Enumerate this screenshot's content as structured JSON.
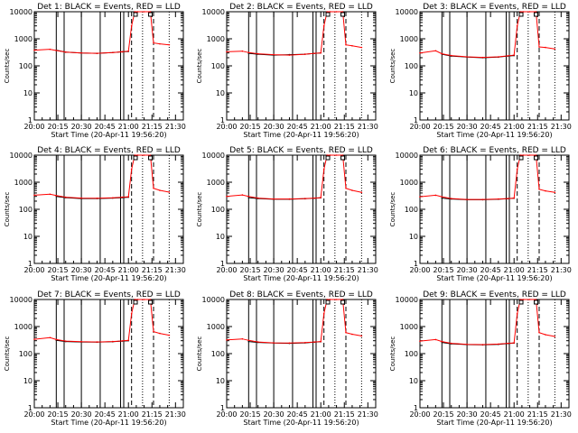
{
  "start_time_label": "Start Time (20-Apr-11 19:56:20)",
  "ylabel": "Counts/sec",
  "x_tick_labels": [
    "20:00",
    "20:15",
    "20:30",
    "20:45",
    "21:00",
    "21:15",
    "21:30"
  ],
  "y_tick_labels": [
    "1",
    "10",
    "100",
    "1000",
    "10000"
  ],
  "colors": {
    "events": "#000000",
    "lld": "#ff0000",
    "frame": "#000000"
  },
  "chart_data": [
    {
      "type": "line",
      "title": "Det 1: BLACK = Events, RED = LLD",
      "xlabel": "Start Time (20-Apr-11 19:56:20)",
      "ylabel": "Counts/sec",
      "ylim": [
        1,
        10000
      ],
      "y_scale": "log",
      "x_ticks_minutes": [
        0,
        15,
        30,
        45,
        60,
        75,
        90
      ],
      "vlines_solid": [
        14,
        19,
        30,
        42,
        55,
        57
      ],
      "vlines_dashed": [
        62,
        76
      ],
      "vlines_dotted": [
        69,
        86
      ],
      "series": [
        {
          "name": "Events",
          "color": "#000000",
          "x": [
            14,
            20,
            30,
            40,
            50,
            56,
            60
          ],
          "y": [
            380,
            320,
            300,
            290,
            310,
            330,
            340
          ]
        },
        {
          "name": "LLD",
          "color": "#ff0000",
          "x": [
            0,
            10,
            14,
            20,
            30,
            40,
            50,
            56,
            60,
            62,
            64,
            66,
            70,
            74,
            76,
            80,
            86
          ],
          "y": [
            380,
            410,
            370,
            320,
            300,
            290,
            310,
            330,
            350,
            3000,
            10000,
            10000,
            10000,
            10000,
            700,
            650,
            600
          ]
        }
      ]
    },
    {
      "type": "line",
      "title": "Det 2: BLACK = Events, RED = LLD",
      "xlabel": "Start Time (20-Apr-11 19:56:20)",
      "ylabel": "Counts/sec",
      "ylim": [
        1,
        10000
      ],
      "y_scale": "log",
      "x_ticks_minutes": [
        0,
        15,
        30,
        45,
        60,
        75,
        90
      ],
      "vlines_solid": [
        14,
        19,
        30,
        42,
        55,
        57
      ],
      "vlines_dashed": [
        62,
        76
      ],
      "vlines_dotted": [
        69,
        86
      ],
      "series": [
        {
          "name": "Events",
          "color": "#000000",
          "x": [
            14,
            20,
            30,
            40,
            50,
            56,
            60
          ],
          "y": [
            290,
            270,
            250,
            260,
            270,
            290,
            300
          ]
        },
        {
          "name": "LLD",
          "color": "#ff0000",
          "x": [
            0,
            10,
            14,
            20,
            30,
            40,
            50,
            56,
            60,
            62,
            64,
            66,
            70,
            74,
            76,
            80,
            86
          ],
          "y": [
            330,
            350,
            310,
            280,
            260,
            250,
            270,
            290,
            300,
            3000,
            10000,
            10000,
            10000,
            10000,
            600,
            550,
            480
          ]
        }
      ]
    },
    {
      "type": "line",
      "title": "Det 3: BLACK = Events, RED = LLD",
      "xlabel": "Start Time (20-Apr-11 19:56:20)",
      "ylabel": "Counts/sec",
      "ylim": [
        1,
        10000
      ],
      "y_scale": "log",
      "x_ticks_minutes": [
        0,
        15,
        30,
        45,
        60,
        75,
        90
      ],
      "vlines_solid": [
        14,
        19,
        30,
        42,
        55,
        57
      ],
      "vlines_dashed": [
        62,
        76
      ],
      "vlines_dotted": [
        69,
        86
      ],
      "series": [
        {
          "name": "Events",
          "color": "#000000",
          "x": [
            14,
            20,
            30,
            40,
            50,
            56,
            60
          ],
          "y": [
            270,
            230,
            210,
            200,
            210,
            230,
            240
          ]
        },
        {
          "name": "LLD",
          "color": "#ff0000",
          "x": [
            0,
            10,
            14,
            20,
            30,
            40,
            50,
            56,
            60,
            62,
            64,
            66,
            70,
            74,
            76,
            80,
            86
          ],
          "y": [
            300,
            360,
            280,
            240,
            215,
            205,
            215,
            235,
            250,
            3000,
            10000,
            10000,
            10000,
            10000,
            500,
            480,
            420
          ]
        }
      ]
    },
    {
      "type": "line",
      "title": "Det 4: BLACK = Events, RED = LLD",
      "xlabel": "Start Time (20-Apr-11 19:56:20)",
      "ylabel": "Counts/sec",
      "ylim": [
        1,
        10000
      ],
      "y_scale": "log",
      "x_ticks_minutes": [
        0,
        15,
        30,
        45,
        60,
        75,
        90
      ],
      "vlines_solid": [
        14,
        19,
        30,
        42,
        55,
        57
      ],
      "vlines_dashed": [
        62,
        76
      ],
      "vlines_dotted": [
        69,
        86
      ],
      "series": [
        {
          "name": "Events",
          "color": "#000000",
          "x": [
            14,
            20,
            30,
            40,
            50,
            56,
            60
          ],
          "y": [
            300,
            270,
            250,
            250,
            260,
            270,
            280
          ]
        },
        {
          "name": "LLD",
          "color": "#ff0000",
          "x": [
            0,
            10,
            14,
            20,
            30,
            40,
            50,
            56,
            60,
            62,
            64,
            66,
            70,
            74,
            76,
            80,
            86
          ],
          "y": [
            330,
            360,
            320,
            280,
            260,
            255,
            265,
            280,
            290,
            3000,
            10000,
            10000,
            10000,
            10000,
            600,
            500,
            430
          ]
        }
      ]
    },
    {
      "type": "line",
      "title": "Det 5: BLACK = Events, RED = LLD",
      "xlabel": "Start Time (20-Apr-11 19:56:20)",
      "ylabel": "Counts/sec",
      "ylim": [
        1,
        10000
      ],
      "y_scale": "log",
      "x_ticks_minutes": [
        0,
        15,
        30,
        45,
        60,
        75,
        90
      ],
      "vlines_solid": [
        14,
        19,
        30,
        42,
        55,
        57
      ],
      "vlines_dashed": [
        62,
        76
      ],
      "vlines_dotted": [
        69,
        86
      ],
      "series": [
        {
          "name": "Events",
          "color": "#000000",
          "x": [
            14,
            20,
            30,
            40,
            50,
            56,
            60
          ],
          "y": [
            270,
            250,
            235,
            235,
            245,
            255,
            265
          ]
        },
        {
          "name": "LLD",
          "color": "#ff0000",
          "x": [
            0,
            10,
            14,
            20,
            30,
            40,
            50,
            56,
            60,
            62,
            64,
            66,
            70,
            74,
            76,
            80,
            86
          ],
          "y": [
            300,
            340,
            300,
            260,
            240,
            240,
            250,
            260,
            270,
            3000,
            10000,
            10000,
            10000,
            10000,
            600,
            500,
            420
          ]
        }
      ]
    },
    {
      "type": "line",
      "title": "Det 6: BLACK = Events, RED = LLD",
      "xlabel": "Start Time (20-Apr-11 19:56:20)",
      "ylabel": "Counts/sec",
      "ylim": [
        1,
        10000
      ],
      "y_scale": "log",
      "x_ticks_minutes": [
        0,
        15,
        30,
        45,
        60,
        75,
        90
      ],
      "vlines_solid": [
        14,
        19,
        30,
        42,
        55,
        57
      ],
      "vlines_dashed": [
        62,
        76
      ],
      "vlines_dotted": [
        69,
        86
      ],
      "series": [
        {
          "name": "Events",
          "color": "#000000",
          "x": [
            14,
            20,
            30,
            40,
            50,
            56,
            60
          ],
          "y": [
            260,
            240,
            225,
            225,
            235,
            245,
            255
          ]
        },
        {
          "name": "LLD",
          "color": "#ff0000",
          "x": [
            0,
            10,
            14,
            20,
            30,
            40,
            50,
            56,
            60,
            62,
            64,
            66,
            70,
            74,
            76,
            80,
            86
          ],
          "y": [
            290,
            330,
            290,
            250,
            230,
            230,
            240,
            250,
            260,
            3000,
            10000,
            10000,
            10000,
            10000,
            550,
            480,
            420
          ]
        }
      ]
    },
    {
      "type": "line",
      "title": "Det 7: BLACK = Events, RED = LLD",
      "xlabel": "Start Time (20-Apr-11 19:56:20)",
      "ylabel": "Counts/sec",
      "ylim": [
        1,
        10000
      ],
      "y_scale": "log",
      "x_ticks_minutes": [
        0,
        15,
        30,
        45,
        60,
        75,
        90
      ],
      "vlines_solid": [
        14,
        19,
        30,
        42,
        55,
        57
      ],
      "vlines_dashed": [
        62,
        76
      ],
      "vlines_dotted": [
        69,
        86
      ],
      "series": [
        {
          "name": "Events",
          "color": "#000000",
          "x": [
            14,
            20,
            30,
            40,
            50,
            56,
            60
          ],
          "y": [
            310,
            280,
            270,
            265,
            275,
            290,
            300
          ]
        },
        {
          "name": "LLD",
          "color": "#ff0000",
          "x": [
            0,
            10,
            14,
            20,
            30,
            40,
            50,
            56,
            60,
            62,
            64,
            66,
            70,
            74,
            76,
            80,
            86
          ],
          "y": [
            340,
            390,
            330,
            290,
            275,
            270,
            280,
            295,
            310,
            3000,
            10000,
            10000,
            10000,
            10000,
            650,
            560,
            480
          ]
        }
      ]
    },
    {
      "type": "line",
      "title": "Det 8: BLACK = Events, RED = LLD",
      "xlabel": "Start Time (20-Apr-11 19:56:20)",
      "ylabel": "Counts/sec",
      "ylim": [
        1,
        10000
      ],
      "y_scale": "log",
      "x_ticks_minutes": [
        0,
        15,
        30,
        45,
        60,
        75,
        90
      ],
      "vlines_solid": [
        14,
        19,
        30,
        42,
        55,
        57
      ],
      "vlines_dashed": [
        62,
        76
      ],
      "vlines_dotted": [
        69,
        86
      ],
      "series": [
        {
          "name": "Events",
          "color": "#000000",
          "x": [
            14,
            20,
            30,
            40,
            50,
            56,
            60
          ],
          "y": [
            280,
            260,
            245,
            240,
            250,
            265,
            275
          ]
        },
        {
          "name": "LLD",
          "color": "#ff0000",
          "x": [
            0,
            10,
            14,
            20,
            30,
            40,
            50,
            56,
            60,
            62,
            64,
            66,
            70,
            74,
            76,
            80,
            86
          ],
          "y": [
            320,
            350,
            310,
            270,
            250,
            245,
            255,
            270,
            280,
            3000,
            10000,
            10000,
            10000,
            10000,
            600,
            520,
            450
          ]
        }
      ]
    },
    {
      "type": "line",
      "title": "Det 9: BLACK = Events, RED = LLD",
      "xlabel": "Start Time (20-Apr-11 19:56:20)",
      "ylabel": "Counts/sec",
      "ylim": [
        1,
        10000
      ],
      "y_scale": "log",
      "x_ticks_minutes": [
        0,
        15,
        30,
        45,
        60,
        75,
        90
      ],
      "vlines_solid": [
        14,
        19,
        30,
        42,
        55,
        57
      ],
      "vlines_dashed": [
        62,
        76
      ],
      "vlines_dotted": [
        69,
        86
      ],
      "series": [
        {
          "name": "Events",
          "color": "#000000",
          "x": [
            14,
            20,
            30,
            40,
            50,
            56,
            60
          ],
          "y": [
            260,
            230,
            215,
            210,
            220,
            235,
            245
          ]
        },
        {
          "name": "LLD",
          "color": "#ff0000",
          "x": [
            0,
            10,
            14,
            20,
            30,
            40,
            50,
            56,
            60,
            62,
            64,
            66,
            70,
            74,
            76,
            80,
            86
          ],
          "y": [
            290,
            330,
            280,
            240,
            220,
            215,
            225,
            240,
            250,
            3000,
            10000,
            10000,
            10000,
            10000,
            600,
            500,
            430
          ]
        }
      ]
    }
  ]
}
